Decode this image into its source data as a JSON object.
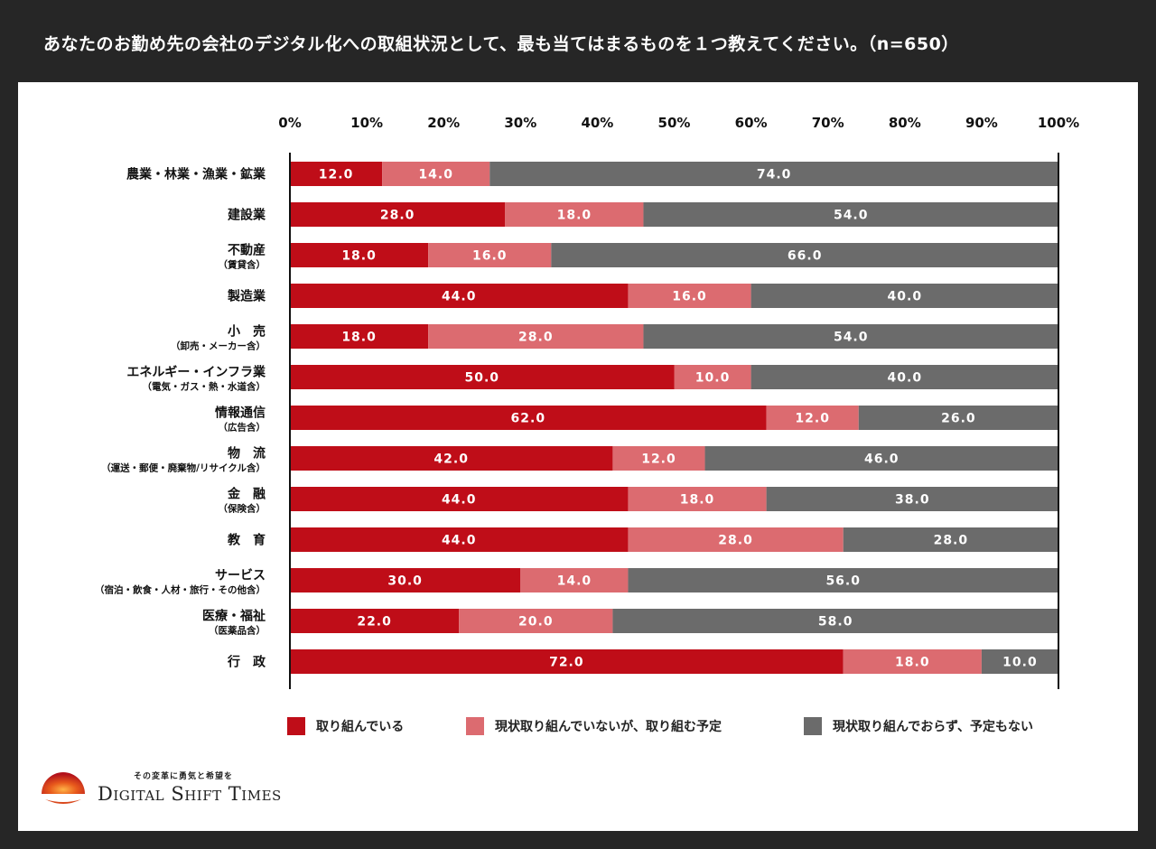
{
  "title": "あなたのお勤め先の会社のデジタル化への取組状況として、最も当てはまるものを１つ教えてください。（n=650）",
  "colors": {
    "series1": "#bf0d18",
    "series2": "#dc6b70",
    "series3": "#6b6b6b",
    "axis": "#111111",
    "background": "#262626",
    "panel": "#ffffff"
  },
  "chart_data": {
    "type": "bar",
    "orientation": "horizontal",
    "stacked": true,
    "title": "あなたのお勤め先の会社のデジタル化への取組状況として、最も当てはまるものを１つ教えてください。（n=650）",
    "xlim": [
      0,
      100
    ],
    "xticks": [
      "0%",
      "10%",
      "20%",
      "30%",
      "40%",
      "50%",
      "60%",
      "70%",
      "80%",
      "90%",
      "100%"
    ],
    "categories": [
      {
        "name": "農業・林業・漁業・鉱業",
        "sub": ""
      },
      {
        "name": "建設業",
        "sub": ""
      },
      {
        "name": "不動産",
        "sub": "（賃貸含）"
      },
      {
        "name": "製造業",
        "sub": ""
      },
      {
        "name": "小　売",
        "sub": "（卸売・メーカー含）"
      },
      {
        "name": "エネルギー・インフラ業",
        "sub": "（電気・ガス・熱・水道含）"
      },
      {
        "name": "情報通信",
        "sub": "（広告含）"
      },
      {
        "name": "物　流",
        "sub": "（運送・郵便・廃棄物/リサイクル含）"
      },
      {
        "name": "金　融",
        "sub": "（保険含）"
      },
      {
        "name": "教　育",
        "sub": ""
      },
      {
        "name": "サービス",
        "sub": "（宿泊・飲食・人材・旅行・その他含）"
      },
      {
        "name": "医療・福祉",
        "sub": "（医薬品含）"
      },
      {
        "name": "行　政",
        "sub": ""
      }
    ],
    "series": [
      {
        "name": "取り組んでいる",
        "values": [
          12.0,
          28.0,
          18.0,
          44.0,
          18.0,
          50.0,
          62.0,
          42.0,
          44.0,
          44.0,
          30.0,
          22.0,
          72.0
        ]
      },
      {
        "name": "現状取り組んでいないが、取り組む予定",
        "values": [
          14.0,
          18.0,
          16.0,
          16.0,
          28.0,
          10.0,
          12.0,
          12.0,
          18.0,
          28.0,
          14.0,
          20.0,
          18.0
        ]
      },
      {
        "name": "現状取り組んでおらず、予定もない",
        "values": [
          74.0,
          54.0,
          66.0,
          40.0,
          54.0,
          40.0,
          26.0,
          46.0,
          38.0,
          28.0,
          56.0,
          58.0,
          10.0
        ]
      }
    ]
  },
  "logo": {
    "tagline": "その変革に勇気と希望を",
    "name": "Digital Shift Times"
  }
}
